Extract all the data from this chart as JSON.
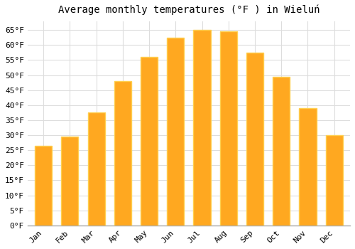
{
  "title": "Average monthly temperatures (°F ) in Wieluń",
  "months": [
    "Jan",
    "Feb",
    "Mar",
    "Apr",
    "May",
    "Jun",
    "Jul",
    "Aug",
    "Sep",
    "Oct",
    "Nov",
    "Dec"
  ],
  "values": [
    26.5,
    29.5,
    37.5,
    48.0,
    56.0,
    62.5,
    65.0,
    64.5,
    57.5,
    49.5,
    39.0,
    30.0
  ],
  "bar_color": "#FFA820",
  "bar_edge_color": "#FFD050",
  "ylim": [
    0,
    68
  ],
  "yticks": [
    0,
    5,
    10,
    15,
    20,
    25,
    30,
    35,
    40,
    45,
    50,
    55,
    60,
    65
  ],
  "background_color": "#ffffff",
  "grid_color": "#dddddd",
  "title_fontsize": 10,
  "tick_fontsize": 8,
  "font_family": "monospace"
}
